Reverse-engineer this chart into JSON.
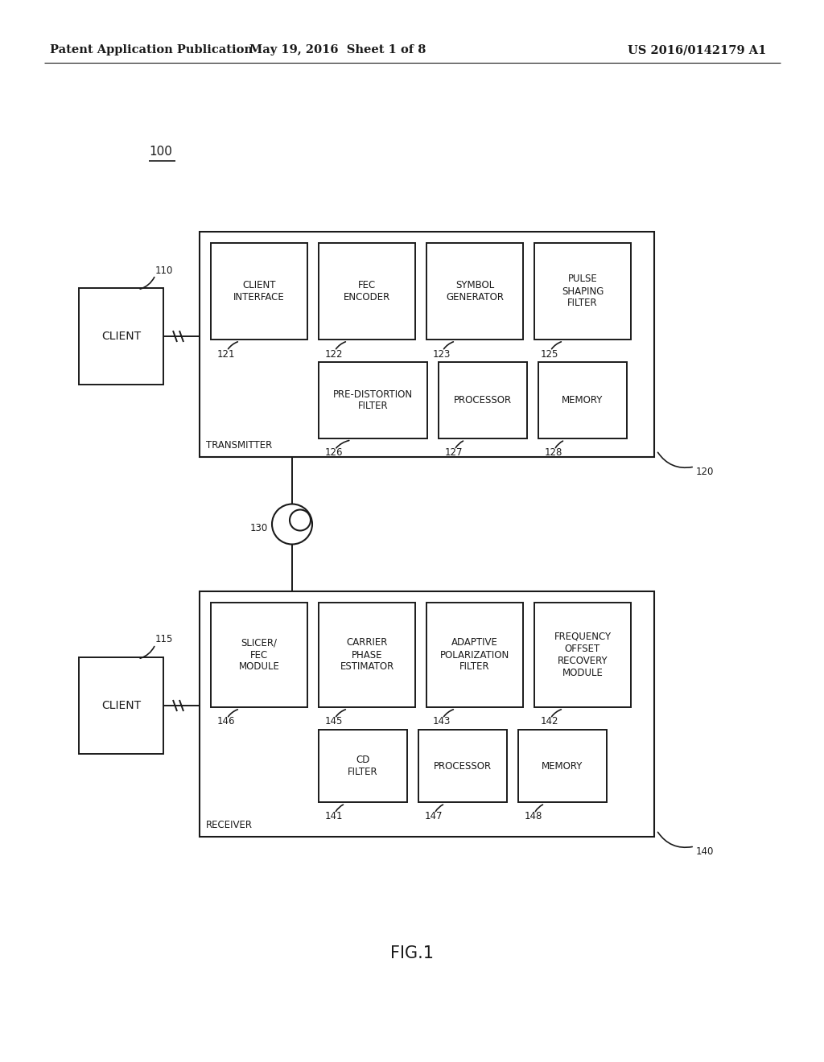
{
  "header_left": "Patent Application Publication",
  "header_mid": "May 19, 2016  Sheet 1 of 8",
  "header_right": "US 2016/0142179 A1",
  "fig_label": "100",
  "fig_caption": "FIG.1",
  "bg_color": "#ffffff",
  "transmitter_label": "TRANSMITTER",
  "transmitter_ref": "120",
  "receiver_label": "RECEIVER",
  "receiver_ref": "140",
  "tx_top_modules": [
    {
      "label": "CLIENT\nINTERFACE",
      "ref": "121"
    },
    {
      "label": "FEC\nENCODER",
      "ref": "122"
    },
    {
      "label": "SYMBOL\nGENERATOR",
      "ref": "123"
    },
    {
      "label": "PULSE\nSHAPING\nFILTER",
      "ref": "125"
    }
  ],
  "tx_bot_modules": [
    {
      "label": "PRE-DISTORTION\nFILTER",
      "ref": "126"
    },
    {
      "label": "PROCESSOR",
      "ref": "127"
    },
    {
      "label": "MEMORY",
      "ref": "128"
    }
  ],
  "rx_top_modules": [
    {
      "label": "SLICER/\nFEC\nMODULE",
      "ref": "146"
    },
    {
      "label": "CARRIER\nPHASE\nESTIMATOR",
      "ref": "145"
    },
    {
      "label": "ADAPTIVE\nPOLARIZATION\nFILTER",
      "ref": "143"
    },
    {
      "label": "FREQUENCY\nOFFSET\nRECOVERY\nMODULE",
      "ref": "142"
    }
  ],
  "rx_bot_modules": [
    {
      "label": "CD\nFILTER",
      "ref": "141"
    },
    {
      "label": "PROCESSOR",
      "ref": "147"
    },
    {
      "label": "MEMORY",
      "ref": "148"
    }
  ],
  "client_tx_label": "CLIENT",
  "client_tx_ref": "110",
  "client_rx_label": "CLIENT",
  "client_rx_ref": "115",
  "fiber_ref": "130"
}
